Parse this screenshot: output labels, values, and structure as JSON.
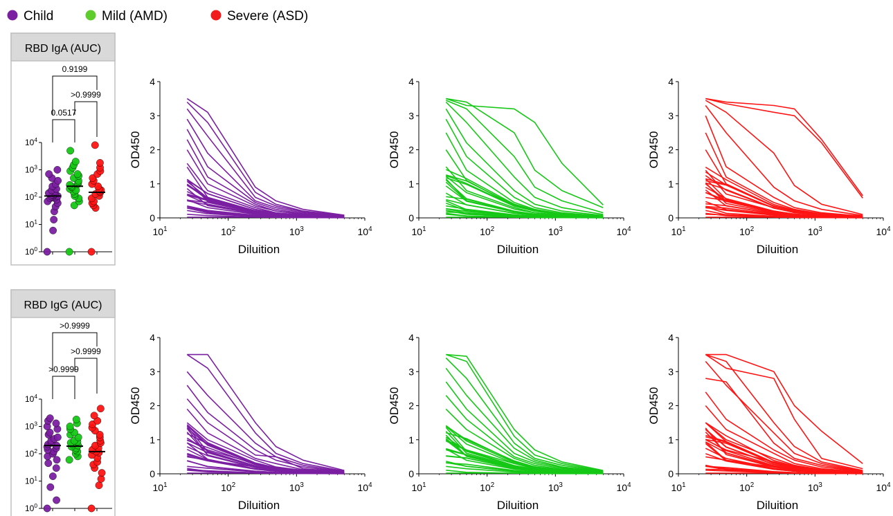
{
  "legend": [
    {
      "label": "Child",
      "color": "#7b1fa2"
    },
    {
      "label": "Mild (AMD)",
      "color": "#5dcc2c"
    },
    {
      "label": "Severe (ASD)",
      "color": "#f21b1b"
    }
  ],
  "colors": {
    "child": "#7b1fa2",
    "mild": "#16c816",
    "severe": "#ff1414",
    "panel_header_bg": "#d9d9d9",
    "panel_border": "#bfbfbf"
  },
  "chart_data": [
    {
      "type": "scatter",
      "title": "RBD IgA (AUC)",
      "yscale": "log",
      "ylim": [
        1,
        10000
      ],
      "yticks": [
        "10^0",
        "10^1",
        "10^2",
        "10^3",
        "10^4"
      ],
      "groups": [
        "Child",
        "Mild (AMD)",
        "Severe (ASD)"
      ],
      "medians": [
        110,
        250,
        150
      ],
      "comparisons": [
        {
          "pair": [
            "Child",
            "Mild (AMD)"
          ],
          "p": "0.0517"
        },
        {
          "pair": [
            "Mild (AMD)",
            "Severe (ASD)"
          ],
          "p": ">0.9999"
        },
        {
          "pair": [
            "Child",
            "Severe (ASD)"
          ],
          "p": "0.9199"
        }
      ],
      "points": [
        [
          1,
          6,
          15,
          30,
          45,
          60,
          70,
          80,
          90,
          95,
          100,
          105,
          110,
          115,
          120,
          130,
          140,
          160,
          180,
          200,
          250,
          300,
          400,
          500,
          700,
          1000
        ],
        [
          1,
          50,
          70,
          90,
          110,
          130,
          160,
          180,
          200,
          230,
          250,
          280,
          300,
          350,
          400,
          500,
          600,
          700,
          900,
          1200,
          1500,
          2000,
          5000
        ],
        [
          1,
          40,
          50,
          60,
          70,
          90,
          110,
          130,
          150,
          160,
          180,
          200,
          250,
          300,
          400,
          500,
          700,
          900,
          1200,
          1800,
          8000
        ]
      ]
    },
    {
      "type": "line",
      "group": "Child",
      "xlabel": "Diluition",
      "ylabel": "OD450",
      "xscale": "log",
      "xlim": [
        10,
        10000
      ],
      "ylim": [
        0,
        4
      ],
      "xticks": [
        "10^1",
        "10^2",
        "10^3",
        "10^4"
      ],
      "yticks": [
        "0",
        "1",
        "2",
        "3",
        "4"
      ],
      "x": [
        25,
        50,
        250,
        500,
        1250,
        5000
      ],
      "top_curves": [
        [
          3.5,
          3.1,
          0.9,
          0.5,
          0.25,
          0.08
        ],
        [
          3.4,
          2.8,
          0.75,
          0.4,
          0.2,
          0.07
        ],
        [
          3.2,
          2.4,
          0.6,
          0.35,
          0.18,
          0.06
        ],
        [
          2.9,
          1.9,
          0.5,
          0.3,
          0.15,
          0.05
        ],
        [
          2.6,
          1.5,
          0.45,
          0.25,
          0.12,
          0.05
        ],
        [
          2.3,
          1.2,
          0.4,
          0.2,
          0.1,
          0.04
        ],
        [
          2.0,
          1.0,
          0.35,
          0.2,
          0.1,
          0.04
        ],
        [
          1.6,
          0.8,
          0.3,
          0.15,
          0.08,
          0.03
        ]
      ]
    },
    {
      "type": "line",
      "group": "Mild (AMD)",
      "xlabel": "Diluition",
      "ylabel": "OD450",
      "xscale": "log",
      "xlim": [
        10,
        10000
      ],
      "ylim": [
        0,
        4
      ],
      "xticks": [
        "10^1",
        "10^2",
        "10^3",
        "10^4"
      ],
      "yticks": [
        "0",
        "1",
        "2",
        "3",
        "4"
      ],
      "x": [
        25,
        50,
        250,
        500,
        1250,
        5000
      ],
      "top_curves": [
        [
          3.5,
          3.3,
          3.2,
          2.8,
          1.6,
          0.38
        ],
        [
          3.5,
          3.4,
          2.5,
          1.4,
          0.8,
          0.3
        ],
        [
          3.45,
          3.2,
          1.8,
          0.9,
          0.5,
          0.15
        ],
        [
          3.4,
          2.8,
          1.2,
          0.6,
          0.3,
          0.1
        ],
        [
          3.2,
          2.2,
          0.8,
          0.4,
          0.2,
          0.07
        ],
        [
          2.9,
          1.8,
          0.6,
          0.3,
          0.15,
          0.05
        ],
        [
          2.5,
          1.4,
          0.45,
          0.25,
          0.12,
          0.05
        ],
        [
          2.0,
          1.1,
          0.35,
          0.2,
          0.1,
          0.04
        ],
        [
          1.5,
          0.8,
          0.3,
          0.15,
          0.08,
          0.03
        ]
      ]
    },
    {
      "type": "line",
      "group": "Severe (ASD)",
      "xlabel": "Diluition",
      "ylabel": "OD450",
      "xscale": "log",
      "xlim": [
        10,
        10000
      ],
      "ylim": [
        0,
        4
      ],
      "xticks": [
        "10^1",
        "10^2",
        "10^3",
        "10^4"
      ],
      "yticks": [
        "0",
        "1",
        "2",
        "3",
        "4"
      ],
      "x": [
        25,
        50,
        250,
        500,
        1250,
        5000
      ],
      "top_curves": [
        [
          3.5,
          3.4,
          3.3,
          3.2,
          2.3,
          0.65
        ],
        [
          3.5,
          3.35,
          3.1,
          3.0,
          2.2,
          0.58
        ],
        [
          3.45,
          3.1,
          1.9,
          0.95,
          0.4,
          0.1
        ],
        [
          3.3,
          2.5,
          0.9,
          0.5,
          0.25,
          0.07
        ],
        [
          3.0,
          1.5,
          0.6,
          0.3,
          0.15,
          0.05
        ],
        [
          2.5,
          1.2,
          0.45,
          0.25,
          0.12,
          0.05
        ],
        [
          2.0,
          1.0,
          0.35,
          0.2,
          0.1,
          0.04
        ],
        [
          1.4,
          0.7,
          0.3,
          0.15,
          0.08,
          0.03
        ],
        [
          1.0,
          0.5,
          0.2,
          0.1,
          0.05,
          0.02
        ]
      ]
    },
    {
      "type": "scatter",
      "title": "RBD IgG (AUC)",
      "yscale": "log",
      "ylim": [
        1,
        10000
      ],
      "yticks": [
        "10^0",
        "10^1",
        "10^2",
        "10^3",
        "10^4"
      ],
      "groups": [
        "Child",
        "Mild (AMD)",
        "Severe (ASD)"
      ],
      "medians": [
        200,
        190,
        120
      ],
      "comparisons": [
        {
          "pair": [
            "Child",
            "Mild (AMD)"
          ],
          "p": ">0.9999"
        },
        {
          "pair": [
            "Mild (AMD)",
            "Severe (ASD)"
          ],
          "p": ">0.9999"
        },
        {
          "pair": [
            "Child",
            "Severe (ASD)"
          ],
          "p": ">0.9999"
        }
      ],
      "points": [
        [
          1,
          2,
          6,
          15,
          30,
          45,
          60,
          80,
          100,
          120,
          140,
          160,
          180,
          200,
          220,
          250,
          300,
          350,
          400,
          500,
          600,
          800,
          1000,
          1300,
          1600,
          2000
        ],
        [
          60,
          80,
          100,
          120,
          140,
          160,
          180,
          200,
          220,
          250,
          280,
          300,
          400,
          500,
          600,
          800,
          1000,
          1300,
          1800
        ],
        [
          1,
          7,
          12,
          20,
          30,
          40,
          50,
          70,
          90,
          110,
          120,
          140,
          160,
          200,
          250,
          300,
          400,
          500,
          700,
          900,
          1200,
          1600,
          2500,
          4500
        ]
      ]
    },
    {
      "type": "line",
      "group": "Child",
      "xlabel": "Diluition",
      "ylabel": "OD450",
      "xscale": "log",
      "xlim": [
        10,
        10000
      ],
      "ylim": [
        0,
        4
      ],
      "xticks": [
        "10^1",
        "10^2",
        "10^3",
        "10^4"
      ],
      "yticks": [
        "0",
        "1",
        "2",
        "3",
        "4"
      ],
      "x": [
        25,
        50,
        250,
        500,
        1250,
        5000
      ],
      "top_curves": [
        [
          3.5,
          3.5,
          1.5,
          0.8,
          0.4,
          0.1
        ],
        [
          3.5,
          3.1,
          1.2,
          0.6,
          0.3,
          0.08
        ],
        [
          3.0,
          2.3,
          0.9,
          0.5,
          0.25,
          0.06
        ],
        [
          2.6,
          1.8,
          0.7,
          0.4,
          0.2,
          0.05
        ],
        [
          2.2,
          1.5,
          0.55,
          0.5,
          0.15,
          0.05
        ],
        [
          1.9,
          1.2,
          0.45,
          0.3,
          0.12,
          0.04
        ],
        [
          1.5,
          1.0,
          0.4,
          0.2,
          0.1,
          0.04
        ],
        [
          1.0,
          0.7,
          0.3,
          0.15,
          0.08,
          0.03
        ],
        [
          0.6,
          0.4,
          0.2,
          0.1,
          0.05,
          0.02
        ]
      ]
    },
    {
      "type": "line",
      "group": "Mild (AMD)",
      "xlabel": "Diluition",
      "ylabel": "OD450",
      "xscale": "log",
      "xlim": [
        10,
        10000
      ],
      "ylim": [
        0,
        4
      ],
      "xticks": [
        "10^1",
        "10^2",
        "10^3",
        "10^4"
      ],
      "yticks": [
        "0",
        "1",
        "2",
        "3",
        "4"
      ],
      "x": [
        25,
        50,
        250,
        500,
        1250,
        5000
      ],
      "top_curves": [
        [
          3.5,
          3.45,
          1.3,
          0.7,
          0.35,
          0.1
        ],
        [
          3.5,
          3.3,
          1.1,
          0.55,
          0.3,
          0.08
        ],
        [
          3.4,
          2.8,
          0.9,
          0.45,
          0.25,
          0.07
        ],
        [
          3.1,
          2.3,
          0.75,
          0.4,
          0.2,
          0.06
        ],
        [
          2.7,
          1.9,
          0.6,
          0.35,
          0.18,
          0.05
        ],
        [
          2.3,
          1.6,
          0.5,
          0.3,
          0.15,
          0.05
        ],
        [
          1.9,
          1.3,
          0.45,
          0.25,
          0.12,
          0.04
        ],
        [
          1.4,
          1.0,
          0.38,
          0.2,
          0.1,
          0.04
        ],
        [
          1.0,
          0.7,
          0.3,
          0.15,
          0.08,
          0.03
        ]
      ]
    },
    {
      "type": "line",
      "group": "Severe (ASD)",
      "xlabel": "Diluition",
      "ylabel": "OD450",
      "xscale": "log",
      "xlim": [
        10,
        10000
      ],
      "ylim": [
        0,
        4
      ],
      "xticks": [
        "10^1",
        "10^2",
        "10^3",
        "10^4"
      ],
      "yticks": [
        "0",
        "1",
        "2",
        "3",
        "4"
      ],
      "x": [
        25,
        50,
        250,
        500,
        1250,
        5000
      ],
      "top_curves": [
        [
          3.5,
          3.5,
          3.0,
          2.0,
          1.25,
          0.3
        ],
        [
          3.5,
          3.1,
          2.8,
          1.6,
          0.45,
          0.15
        ],
        [
          3.5,
          3.3,
          1.5,
          0.8,
          0.35,
          0.1
        ],
        [
          3.3,
          2.6,
          1.2,
          0.6,
          0.3,
          0.08
        ],
        [
          2.8,
          2.7,
          0.9,
          0.45,
          0.25,
          0.07
        ],
        [
          2.4,
          1.6,
          0.7,
          0.4,
          0.2,
          0.06
        ],
        [
          2.0,
          1.3,
          0.6,
          0.3,
          0.15,
          0.05
        ],
        [
          1.5,
          1.0,
          0.45,
          0.25,
          0.12,
          0.04
        ],
        [
          1.0,
          0.7,
          0.35,
          0.2,
          0.1,
          0.03
        ],
        [
          0.5,
          0.4,
          0.2,
          0.1,
          0.05,
          0.02
        ]
      ]
    }
  ]
}
